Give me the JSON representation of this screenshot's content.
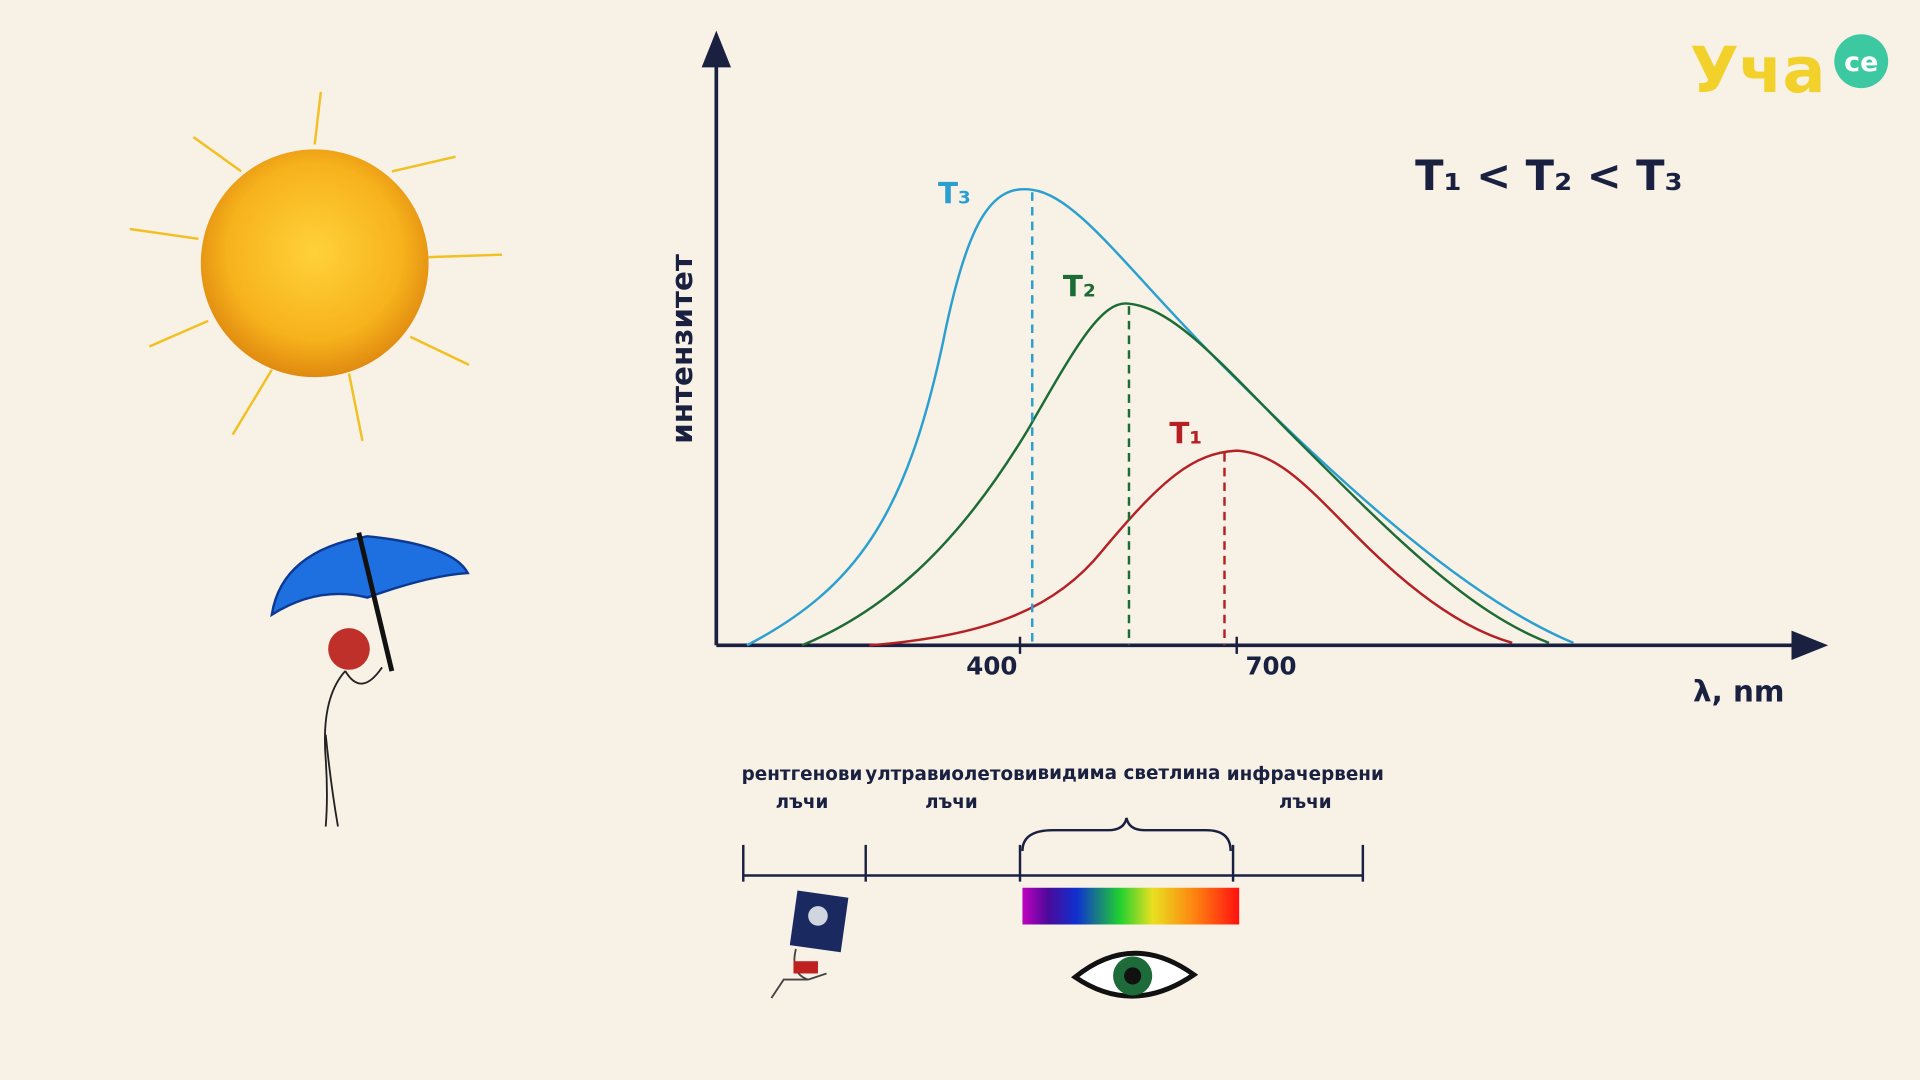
{
  "logo": {
    "main": "Уча",
    "badge": "се"
  },
  "graph": {
    "y_label": "интензитет",
    "x_label": "λ, nm",
    "ticks": [
      "400",
      "700"
    ],
    "curves": [
      "T₃",
      "T₂",
      "T₁"
    ],
    "relation": "T₁ < T₂ < T₃"
  },
  "spectrum": {
    "bands": [
      {
        "line1": "рентгенови",
        "line2": "лъчи"
      },
      {
        "line1": "ултравиолетови",
        "line2": "лъчи"
      },
      {
        "line1": "видима светлина"
      },
      {
        "line1": "инфрачервени",
        "line2": "лъчи"
      }
    ]
  }
}
